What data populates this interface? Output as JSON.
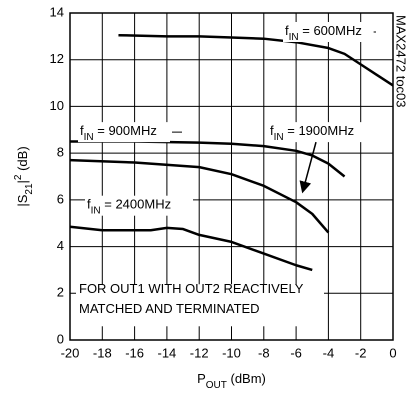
{
  "chart_data": {
    "type": "line",
    "xlim": [
      -20,
      0
    ],
    "xticks": [
      -20,
      -18,
      -16,
      -14,
      -12,
      -10,
      -8,
      -6,
      -4,
      -2,
      0
    ],
    "ylim": [
      0,
      14
    ],
    "yticks": [
      0,
      2,
      4,
      6,
      8,
      10,
      12,
      14
    ],
    "grid": true,
    "xlabel_parts": [
      {
        "text": "P"
      },
      {
        "text": "OUT",
        "shift": "sub"
      },
      {
        "text": " (dBm)"
      }
    ],
    "ylabel_parts": [
      {
        "text": "|S"
      },
      {
        "text": "21",
        "shift": "sub"
      },
      {
        "text": "|"
      },
      {
        "text": "2",
        "shift": "super"
      },
      {
        "text": " (dB)"
      }
    ],
    "side_note": "MAX2472 toc03",
    "note_lines": [
      "FOR OUT1 WITH OUT2 REACTIVELY",
      "MATCHED AND TERMINATED"
    ],
    "series": [
      {
        "label_parts": [
          {
            "text": "f"
          },
          {
            "text": "IN",
            "shift": "sub"
          },
          {
            "text": " = 600MHz"
          }
        ],
        "color": "#000",
        "x": [
          -17,
          -14,
          -12,
          -10,
          -8,
          -6,
          -4,
          -3,
          -2,
          -1,
          0
        ],
        "values": [
          13.05,
          13.0,
          13.0,
          12.95,
          12.9,
          12.75,
          12.5,
          12.25,
          11.8,
          11.35,
          10.9
        ]
      },
      {
        "label_parts": [
          {
            "text": "f"
          },
          {
            "text": "IN",
            "shift": "sub"
          },
          {
            "text": " = 900MHz"
          }
        ],
        "color": "#000",
        "x": [
          -20,
          -16,
          -12,
          -10,
          -8,
          -6,
          -5,
          -4,
          -3
        ],
        "values": [
          8.5,
          8.5,
          8.45,
          8.4,
          8.3,
          8.1,
          7.9,
          7.55,
          7.0
        ]
      },
      {
        "label_parts": [
          {
            "text": "f"
          },
          {
            "text": "IN",
            "shift": "sub"
          },
          {
            "text": " = 1900MHz"
          }
        ],
        "color": "#000",
        "x": [
          -20,
          -16,
          -12,
          -10,
          -8,
          -6,
          -5,
          -4
        ],
        "values": [
          7.7,
          7.6,
          7.4,
          7.1,
          6.6,
          5.9,
          5.4,
          4.6
        ]
      },
      {
        "label_parts": [
          {
            "text": "f"
          },
          {
            "text": "IN",
            "shift": "sub"
          },
          {
            "text": " = 2400MHz"
          }
        ],
        "color": "#000",
        "x": [
          -20,
          -18,
          -16,
          -15,
          -14,
          -13,
          -12,
          -10,
          -8,
          -6,
          -5
        ],
        "values": [
          4.85,
          4.7,
          4.7,
          4.7,
          4.8,
          4.75,
          4.5,
          4.2,
          3.7,
          3.2,
          3.0
        ]
      }
    ]
  }
}
